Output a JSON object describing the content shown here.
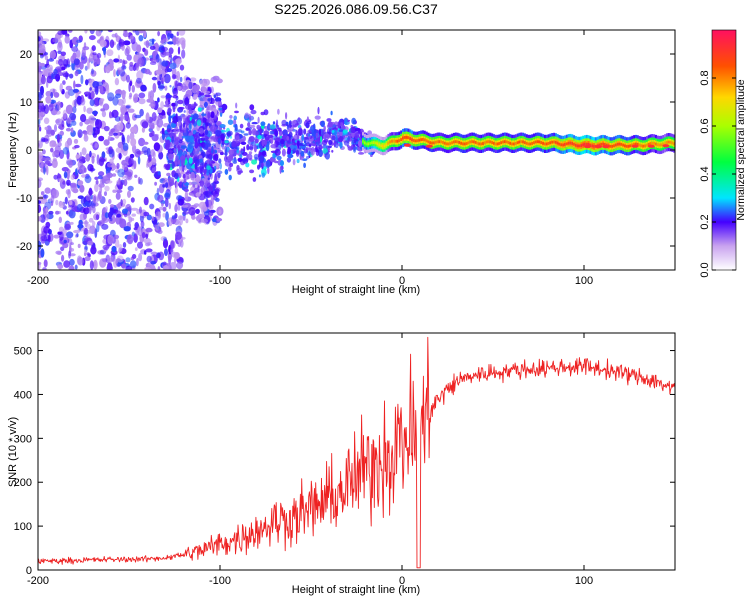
{
  "title": "S225.2026.086.09.56.C37",
  "chart_data": [
    {
      "type": "heatmap",
      "name": "spectrogram",
      "xlabel": "Height of straight line (km)",
      "ylabel": "Frequency (Hz)",
      "xlim": [
        -200,
        150
      ],
      "ylim": [
        -25,
        25
      ],
      "xticks": [
        -200,
        -100,
        0,
        100
      ],
      "yticks": [
        -20,
        -10,
        0,
        10,
        20
      ],
      "colorbar": {
        "label": "Normalized spectral amplitude",
        "range": [
          0,
          1
        ],
        "ticks": [
          0.0,
          0.2,
          0.4,
          0.6,
          0.8
        ]
      },
      "ridge": [
        {
          "x": -120,
          "f": 1.5,
          "amp": 0.22
        },
        {
          "x": -100,
          "f": 1.5,
          "amp": 0.24
        },
        {
          "x": -80,
          "f": 1.8,
          "amp": 0.24
        },
        {
          "x": -60,
          "f": 2.0,
          "amp": 0.26
        },
        {
          "x": -40,
          "f": 3.0,
          "amp": 0.32
        },
        {
          "x": -30,
          "f": 3.5,
          "amp": 0.38
        },
        {
          "x": -20,
          "f": 1.5,
          "amp": 0.45
        },
        {
          "x": -10,
          "f": 1.0,
          "amp": 0.6
        },
        {
          "x": 0,
          "f": 2.5,
          "amp": 0.75
        },
        {
          "x": 20,
          "f": 1.5,
          "amp": 0.7
        },
        {
          "x": 50,
          "f": 1.5,
          "amp": 0.7
        },
        {
          "x": 80,
          "f": 1.5,
          "amp": 0.72
        },
        {
          "x": 100,
          "f": 1.0,
          "amp": 0.8
        },
        {
          "x": 130,
          "f": 1.0,
          "amp": 0.7
        },
        {
          "x": 150,
          "f": 1.5,
          "amp": 0.65
        }
      ]
    },
    {
      "type": "line",
      "name": "snr",
      "xlabel": "Height of straight line (km)",
      "ylabel": "SNR (10 * v/v)",
      "xlim": [
        -200,
        150
      ],
      "ylim": [
        0,
        540
      ],
      "xticks": [
        -200,
        -100,
        0,
        100
      ],
      "yticks": [
        0,
        100,
        200,
        300,
        400,
        500
      ],
      "color": "#ee2222",
      "x": [
        -200,
        -180,
        -160,
        -140,
        -130,
        -120,
        -110,
        -100,
        -90,
        -80,
        -70,
        -60,
        -50,
        -40,
        -30,
        -20,
        -10,
        0,
        10,
        20,
        30,
        40,
        60,
        80,
        100,
        120,
        140,
        150
      ],
      "y": [
        20,
        22,
        24,
        25,
        28,
        35,
        45,
        60,
        70,
        90,
        110,
        120,
        140,
        160,
        190,
        230,
        260,
        290,
        330,
        390,
        430,
        445,
        455,
        460,
        465,
        450,
        430,
        410
      ]
    }
  ]
}
